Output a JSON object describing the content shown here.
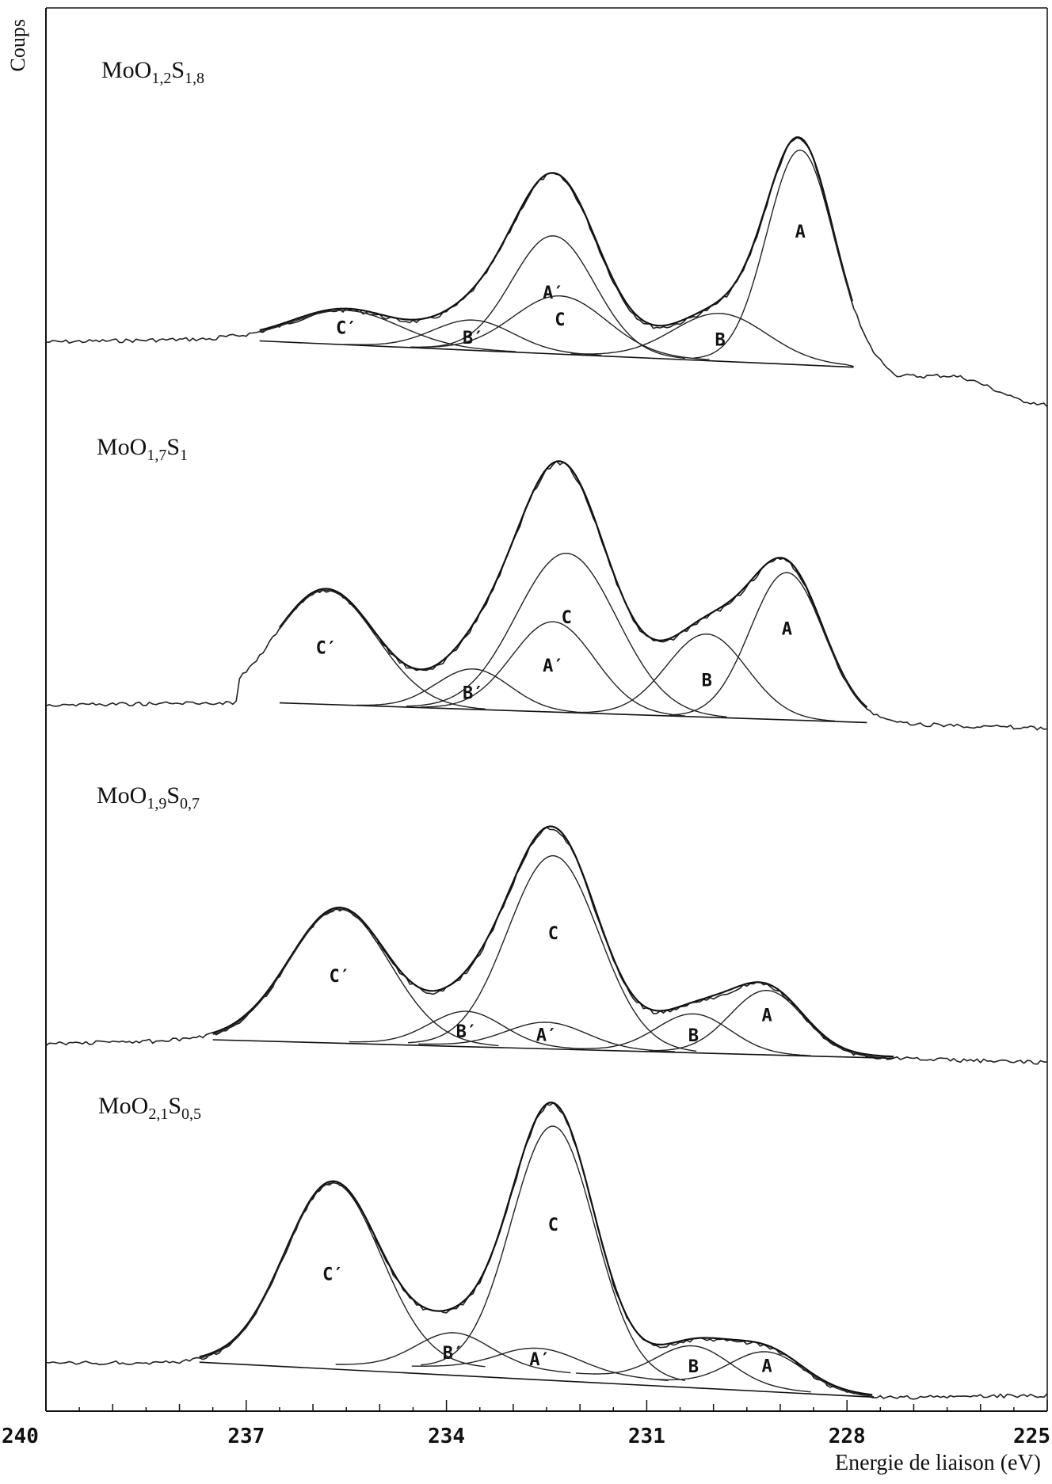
{
  "chart_data": {
    "type": "line",
    "ylabel": "Coups",
    "xlabel": "Energie de liaison (eV)",
    "xlim": [
      240,
      225
    ],
    "x_reversed": true,
    "xticks": [
      "240",
      "237",
      "234",
      "231",
      "228",
      "225"
    ],
    "xtick_values": [
      240,
      237,
      234,
      231,
      228,
      225
    ],
    "grid": false,
    "panels": [
      {
        "sample": "MoO1,2S1,8",
        "sample_parts": [
          "MoO",
          "1,2",
          "S",
          "1,8"
        ],
        "components": [
          {
            "label": "A",
            "center": 228.7,
            "height": 1.0,
            "sigma": 0.5
          },
          {
            "label": "A′",
            "center": 232.4,
            "height": 0.55,
            "sigma": 0.62
          },
          {
            "label": "B",
            "center": 229.9,
            "height": 0.22,
            "sigma": 0.7
          },
          {
            "label": "B′",
            "center": 233.6,
            "height": 0.14,
            "sigma": 0.6
          },
          {
            "label": "C",
            "center": 232.3,
            "height": 0.27,
            "sigma": 0.7
          },
          {
            "label": "C′",
            "center": 235.5,
            "height": 0.16,
            "sigma": 0.8
          }
        ]
      },
      {
        "sample": "MoO1,7S1",
        "sample_parts": [
          "MoO",
          "1,7",
          "S",
          "1"
        ],
        "components": [
          {
            "label": "A",
            "center": 228.9,
            "height": 0.62,
            "sigma": 0.55
          },
          {
            "label": "A′",
            "center": 232.4,
            "height": 0.38,
            "sigma": 0.62
          },
          {
            "label": "B",
            "center": 230.1,
            "height": 0.35,
            "sigma": 0.6
          },
          {
            "label": "B′",
            "center": 233.6,
            "height": 0.17,
            "sigma": 0.55
          },
          {
            "label": "C",
            "center": 232.2,
            "height": 0.67,
            "sigma": 0.75
          },
          {
            "label": "C′",
            "center": 235.8,
            "height": 0.48,
            "sigma": 0.75
          }
        ]
      },
      {
        "sample": "MoO1,9S0,7",
        "sample_parts": [
          "MoO",
          "1,9",
          "S",
          "0,7"
        ],
        "components": [
          {
            "label": "A",
            "center": 229.2,
            "height": 0.3,
            "sigma": 0.55
          },
          {
            "label": "A′",
            "center": 232.5,
            "height": 0.12,
            "sigma": 0.6
          },
          {
            "label": "B",
            "center": 230.3,
            "height": 0.18,
            "sigma": 0.55
          },
          {
            "label": "B′",
            "center": 233.7,
            "height": 0.16,
            "sigma": 0.55
          },
          {
            "label": "C",
            "center": 232.4,
            "height": 0.9,
            "sigma": 0.68
          },
          {
            "label": "C′",
            "center": 235.6,
            "height": 0.62,
            "sigma": 0.75
          }
        ]
      },
      {
        "sample": "MoO2,1S0,5",
        "sample_parts": [
          "MoO",
          "2,1",
          "S",
          "0,5"
        ],
        "components": [
          {
            "label": "A",
            "center": 229.2,
            "height": 0.15,
            "sigma": 0.55
          },
          {
            "label": "A′",
            "center": 232.6,
            "height": 0.09,
            "sigma": 0.6
          },
          {
            "label": "B",
            "center": 230.3,
            "height": 0.15,
            "sigma": 0.55
          },
          {
            "label": "B′",
            "center": 233.9,
            "height": 0.14,
            "sigma": 0.55
          },
          {
            "label": "C",
            "center": 232.4,
            "height": 1.0,
            "sigma": 0.62
          },
          {
            "label": "C′",
            "center": 235.7,
            "height": 0.74,
            "sigma": 0.72
          }
        ]
      }
    ]
  }
}
